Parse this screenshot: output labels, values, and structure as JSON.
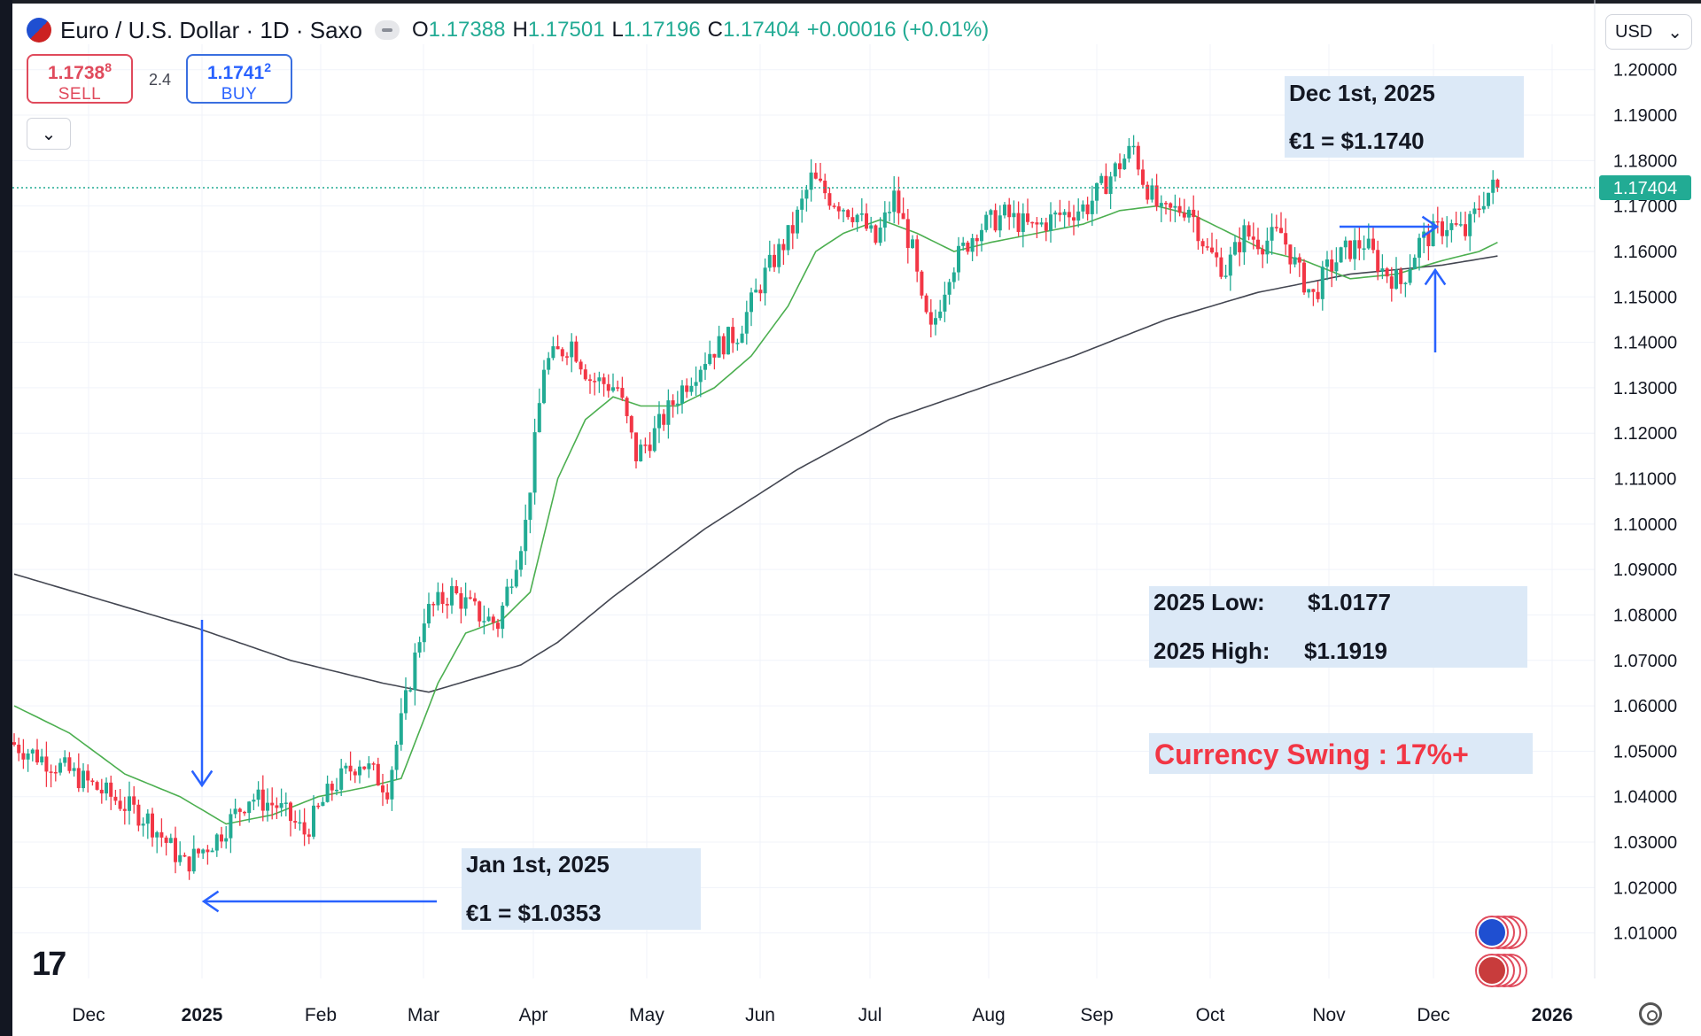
{
  "header": {
    "symbol_title": "Euro / U.S. Dollar · 1D · Saxo",
    "ohlc": {
      "o_label": "O",
      "o_value": "1.17388",
      "h_label": "H",
      "h_value": "1.17501",
      "l_label": "L",
      "l_value": "1.17196",
      "c_label": "C",
      "c_value": "1.17404",
      "change": "+0.00016 (+0.01%)"
    }
  },
  "trade": {
    "sell_main": "1.1738",
    "sell_sup": "8",
    "sell_label": "SELL",
    "spread": "2.4",
    "buy_main": "1.1741",
    "buy_sup": "2",
    "buy_label": "BUY"
  },
  "currency_select": {
    "value": "USD",
    "arrow": "⌄"
  },
  "collapse_arrow": "⌄",
  "tv_logo_text": "17",
  "chart_data": {
    "type": "candlestick",
    "title": "Euro / U.S. Dollar · 1D · Saxo",
    "y_range": [
      1.0,
      1.2056
    ],
    "y_ticks": [
      "1.20000",
      "1.19000",
      "1.18000",
      "1.17000",
      "1.16000",
      "1.15000",
      "1.14000",
      "1.13000",
      "1.12000",
      "1.11000",
      "1.10000",
      "1.09000",
      "1.08000",
      "1.07000",
      "1.06000",
      "1.05000",
      "1.04000",
      "1.03000",
      "1.02000",
      "1.01000"
    ],
    "x_ticks": [
      {
        "label": "Dec",
        "bold": false
      },
      {
        "label": "2025",
        "bold": true
      },
      {
        "label": "Feb",
        "bold": false
      },
      {
        "label": "Mar",
        "bold": false
      },
      {
        "label": "Apr",
        "bold": false
      },
      {
        "label": "May",
        "bold": false
      },
      {
        "label": "Jun",
        "bold": false
      },
      {
        "label": "Jul",
        "bold": false
      },
      {
        "label": "Aug",
        "bold": false
      },
      {
        "label": "Sep",
        "bold": false
      },
      {
        "label": "Oct",
        "bold": false
      },
      {
        "label": "Nov",
        "bold": false
      },
      {
        "label": "Dec",
        "bold": false
      },
      {
        "label": "2026",
        "bold": true
      }
    ],
    "last_price": "1.17404",
    "last_price_value": 1.17404,
    "anchors": [
      [
        0,
        1.052
      ],
      [
        12,
        1.046
      ],
      [
        22,
        1.04
      ],
      [
        30,
        1.035
      ],
      [
        38,
        1.025
      ],
      [
        45,
        1.031
      ],
      [
        52,
        1.04
      ],
      [
        58,
        1.038
      ],
      [
        64,
        1.032
      ],
      [
        70,
        1.042
      ],
      [
        76,
        1.048
      ],
      [
        82,
        1.042
      ],
      [
        90,
        1.08
      ],
      [
        96,
        1.085
      ],
      [
        102,
        1.08
      ],
      [
        106,
        1.078
      ],
      [
        112,
        1.1
      ],
      [
        116,
        1.135
      ],
      [
        122,
        1.14
      ],
      [
        126,
        1.132
      ],
      [
        132,
        1.13
      ],
      [
        136,
        1.115
      ],
      [
        140,
        1.12
      ],
      [
        146,
        1.13
      ],
      [
        152,
        1.138
      ],
      [
        158,
        1.142
      ],
      [
        164,
        1.155
      ],
      [
        170,
        1.165
      ],
      [
        174,
        1.176
      ],
      [
        178,
        1.172
      ],
      [
        184,
        1.168
      ],
      [
        188,
        1.162
      ],
      [
        192,
        1.172
      ],
      [
        196,
        1.16
      ],
      [
        198,
        1.148
      ],
      [
        200,
        1.142
      ],
      [
        204,
        1.156
      ],
      [
        210,
        1.165
      ],
      [
        216,
        1.168
      ],
      [
        222,
        1.165
      ],
      [
        228,
        1.168
      ],
      [
        234,
        1.17
      ],
      [
        240,
        1.178
      ],
      [
        244,
        1.183
      ],
      [
        246,
        1.176
      ],
      [
        250,
        1.168
      ],
      [
        256,
        1.17
      ],
      [
        260,
        1.16
      ],
      [
        264,
        1.156
      ],
      [
        268,
        1.164
      ],
      [
        272,
        1.162
      ],
      [
        276,
        1.164
      ],
      [
        280,
        1.155
      ],
      [
        283,
        1.15
      ],
      [
        286,
        1.156
      ],
      [
        290,
        1.16
      ],
      [
        294,
        1.162
      ],
      [
        298,
        1.156
      ],
      [
        302,
        1.153
      ],
      [
        306,
        1.162
      ],
      [
        312,
        1.166
      ],
      [
        316,
        1.164
      ],
      [
        320,
        1.172
      ],
      [
        322,
        1.174
      ]
    ],
    "ma_short_anchors": [
      [
        0,
        1.06
      ],
      [
        12,
        1.054
      ],
      [
        24,
        1.045
      ],
      [
        36,
        1.04
      ],
      [
        46,
        1.034
      ],
      [
        56,
        1.036
      ],
      [
        66,
        1.04
      ],
      [
        76,
        1.042
      ],
      [
        84,
        1.044
      ],
      [
        92,
        1.065
      ],
      [
        98,
        1.076
      ],
      [
        106,
        1.079
      ],
      [
        112,
        1.085
      ],
      [
        118,
        1.11
      ],
      [
        124,
        1.123
      ],
      [
        130,
        1.128
      ],
      [
        136,
        1.126
      ],
      [
        144,
        1.126
      ],
      [
        152,
        1.13
      ],
      [
        160,
        1.137
      ],
      [
        168,
        1.148
      ],
      [
        174,
        1.16
      ],
      [
        180,
        1.164
      ],
      [
        188,
        1.167
      ],
      [
        196,
        1.164
      ],
      [
        204,
        1.16
      ],
      [
        212,
        1.162
      ],
      [
        222,
        1.164
      ],
      [
        232,
        1.166
      ],
      [
        240,
        1.169
      ],
      [
        248,
        1.17
      ],
      [
        256,
        1.168
      ],
      [
        264,
        1.164
      ],
      [
        272,
        1.16
      ],
      [
        280,
        1.158
      ],
      [
        290,
        1.154
      ],
      [
        300,
        1.155
      ],
      [
        310,
        1.158
      ],
      [
        318,
        1.16
      ],
      [
        322,
        1.162
      ]
    ],
    "ma_long_anchors": [
      [
        0,
        1.089
      ],
      [
        20,
        1.083
      ],
      [
        40,
        1.077
      ],
      [
        60,
        1.07
      ],
      [
        80,
        1.065
      ],
      [
        90,
        1.063
      ],
      [
        100,
        1.066
      ],
      [
        110,
        1.069
      ],
      [
        118,
        1.074
      ],
      [
        130,
        1.084
      ],
      [
        150,
        1.099
      ],
      [
        170,
        1.112
      ],
      [
        190,
        1.123
      ],
      [
        210,
        1.13
      ],
      [
        230,
        1.137
      ],
      [
        250,
        1.145
      ],
      [
        270,
        1.151
      ],
      [
        290,
        1.155
      ],
      [
        310,
        1.157
      ],
      [
        322,
        1.159
      ]
    ],
    "annotations": {
      "dec_date": "Dec 1st, 2025",
      "dec_rate": "€1 = $1.1740",
      "jan_date": "Jan 1st, 2025",
      "jan_rate": "€1 = $1.0353",
      "low_label": "2025 Low:",
      "low_value": "$1.0177",
      "high_label": "2025 High:",
      "high_value": "$1.1919",
      "swing": "Currency Swing : 17%+"
    },
    "colors": {
      "up": "#22ab94",
      "down": "#f23645",
      "ma_short": "#4caf50",
      "ma_long": "#434651",
      "arrow": "#2962ff",
      "annotation_bg": "#dce9f7",
      "swing_text": "#f23645",
      "price_label_bg": "#22ab94"
    }
  }
}
